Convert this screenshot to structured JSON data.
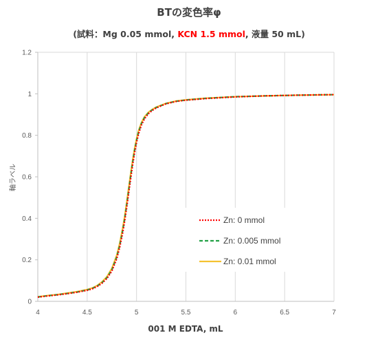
{
  "chart_data": {
    "type": "line",
    "title": "BTの変色率φ",
    "subtitle": {
      "prefix": "(試料：Mg 0.05 mmol, ",
      "highlight": "KCN 1.5 mmol",
      "suffix": ", 液量 50 mL)",
      "highlight_color": "#ff0000"
    },
    "xlabel": "001 M EDTA, mL",
    "ylabel": "軸ラベル",
    "xlim": [
      4,
      7
    ],
    "ylim": [
      0,
      1.2
    ],
    "xticks": [
      4,
      4.5,
      5,
      5.5,
      6,
      6.5,
      7
    ],
    "xtick_labels": [
      "4",
      "4.5",
      "5",
      "5.5",
      "6",
      "6.5",
      "7"
    ],
    "yticks": [
      0,
      0.2,
      0.4,
      0.6,
      0.8,
      1,
      1.2
    ],
    "ytick_labels": [
      "0",
      "0.2",
      "0.4",
      "0.6",
      "0.8",
      "1",
      "1.2"
    ],
    "grid": "vertical",
    "legend_position": "right-center",
    "series": [
      {
        "name": "Zn:  0 mmol",
        "color": "#ff0000",
        "dash": "dotted",
        "x": [
          4.0,
          4.1,
          4.2,
          4.3,
          4.4,
          4.5,
          4.55,
          4.6,
          4.65,
          4.7,
          4.75,
          4.8,
          4.83,
          4.86,
          4.88,
          4.9,
          4.92,
          4.94,
          4.96,
          4.98,
          5.0,
          5.02,
          5.05,
          5.08,
          5.12,
          5.16,
          5.2,
          5.3,
          5.4,
          5.5,
          5.7,
          6.0,
          6.3,
          6.6,
          7.0
        ],
        "y": [
          0.02,
          0.026,
          0.031,
          0.037,
          0.044,
          0.053,
          0.06,
          0.071,
          0.087,
          0.11,
          0.146,
          0.206,
          0.261,
          0.331,
          0.387,
          0.451,
          0.52,
          0.589,
          0.656,
          0.715,
          0.765,
          0.806,
          0.85,
          0.879,
          0.904,
          0.92,
          0.932,
          0.952,
          0.963,
          0.969,
          0.977,
          0.985,
          0.99,
          0.993,
          0.996
        ]
      },
      {
        "name": "Zn: 0.005 mmol",
        "color": "#22a045",
        "dash": "dashed",
        "x": [
          4.0,
          4.1,
          4.2,
          4.3,
          4.4,
          4.5,
          4.55,
          4.6,
          4.65,
          4.7,
          4.75,
          4.8,
          4.83,
          4.86,
          4.88,
          4.9,
          4.92,
          4.94,
          4.96,
          4.98,
          5.0,
          5.02,
          5.05,
          5.08,
          5.12,
          5.16,
          5.2,
          5.3,
          5.4,
          5.5,
          5.7,
          6.0,
          6.3,
          6.6,
          7.0
        ],
        "y": [
          0.021,
          0.027,
          0.032,
          0.038,
          0.045,
          0.055,
          0.062,
          0.073,
          0.09,
          0.114,
          0.152,
          0.214,
          0.27,
          0.342,
          0.398,
          0.463,
          0.533,
          0.602,
          0.668,
          0.726,
          0.775,
          0.815,
          0.857,
          0.885,
          0.908,
          0.923,
          0.934,
          0.953,
          0.964,
          0.97,
          0.978,
          0.986,
          0.99,
          0.993,
          0.996
        ]
      },
      {
        "name": "Zn:  0.01 mmol",
        "color": "#f5c231",
        "dash": "solid",
        "x": [
          4.0,
          4.1,
          4.2,
          4.3,
          4.4,
          4.5,
          4.55,
          4.6,
          4.65,
          4.7,
          4.75,
          4.8,
          4.83,
          4.86,
          4.88,
          4.9,
          4.92,
          4.94,
          4.96,
          4.98,
          5.0,
          5.02,
          5.05,
          5.08,
          5.12,
          5.16,
          5.2,
          5.3,
          5.4,
          5.5,
          5.7,
          6.0,
          6.3,
          6.6,
          7.0
        ],
        "y": [
          0.022,
          0.028,
          0.033,
          0.04,
          0.047,
          0.057,
          0.064,
          0.076,
          0.094,
          0.119,
          0.159,
          0.223,
          0.281,
          0.354,
          0.41,
          0.476,
          0.546,
          0.614,
          0.679,
          0.736,
          0.783,
          0.822,
          0.862,
          0.889,
          0.911,
          0.925,
          0.936,
          0.954,
          0.965,
          0.971,
          0.979,
          0.986,
          0.99,
          0.993,
          0.996
        ]
      }
    ]
  }
}
